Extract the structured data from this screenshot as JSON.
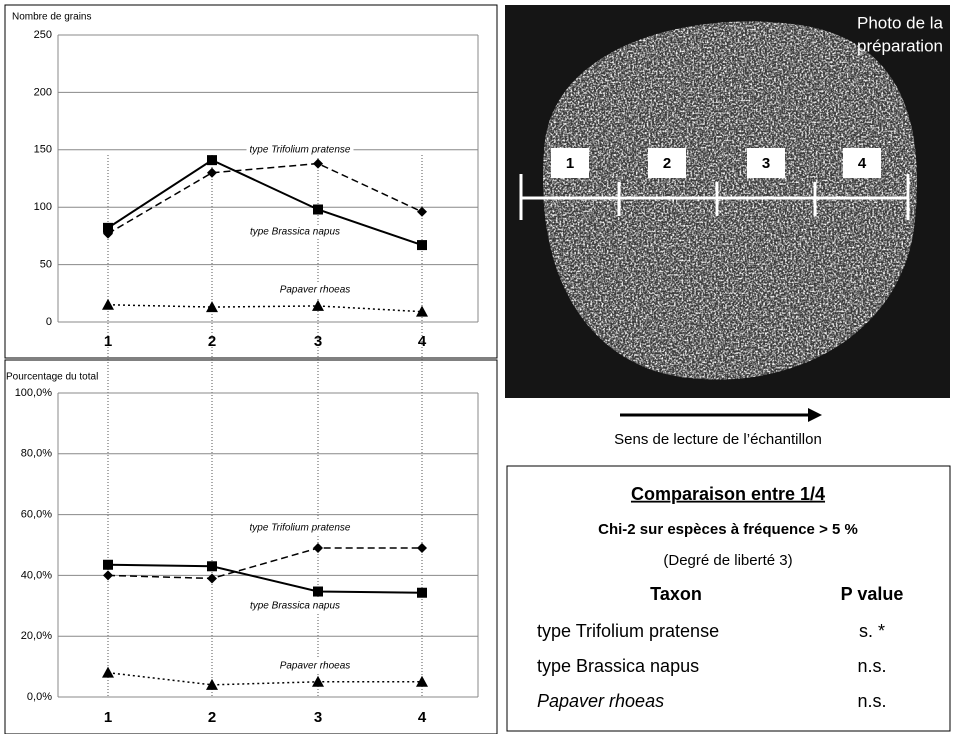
{
  "chart_data": [
    {
      "type": "line",
      "title": "Nombre de grains",
      "categories": [
        "1",
        "2",
        "3",
        "4"
      ],
      "series": [
        {
          "name": "type Trifolium pratense",
          "color": "#000000",
          "dash": "dashed",
          "marker": "diamond",
          "values": [
            77,
            130,
            138,
            96
          ]
        },
        {
          "name": "type Brassica napus",
          "color": "#000000",
          "dash": "solid",
          "marker": "square",
          "values": [
            82,
            141,
            98,
            67
          ]
        },
        {
          "name": "Papaver rhoeas",
          "color": "#000000",
          "dash": "dotted",
          "marker": "triangle",
          "values": [
            15,
            13,
            14,
            9
          ]
        }
      ],
      "ylim": [
        0,
        250
      ],
      "yticks": [
        0,
        50,
        100,
        150,
        200,
        250
      ],
      "grid": true
    },
    {
      "type": "line",
      "title": "Pourcentage du total",
      "categories": [
        "1",
        "2",
        "3",
        "4"
      ],
      "series": [
        {
          "name": "type Trifolium pratense",
          "color": "#000000",
          "dash": "dashed",
          "marker": "diamond",
          "values": [
            40,
            39,
            49,
            49
          ]
        },
        {
          "name": "type Brassica napus",
          "color": "#000000",
          "dash": "solid",
          "marker": "square",
          "values": [
            43.5,
            43,
            34.7,
            34.3
          ]
        },
        {
          "name": "Papaver rhoeas",
          "color": "#000000",
          "dash": "dotted",
          "marker": "triangle",
          "values": [
            8,
            4,
            5,
            5
          ]
        }
      ],
      "ylim": [
        0,
        100
      ],
      "yticks": [
        {
          "value": 0,
          "label": "0,0%"
        },
        {
          "value": 20,
          "label": "20,0%"
        },
        {
          "value": 40,
          "label": "40,0%"
        },
        {
          "value": 60,
          "label": "60,0%"
        },
        {
          "value": 80,
          "label": "80,0%"
        },
        {
          "value": 100,
          "label": "100,0%"
        }
      ],
      "grid": true
    }
  ],
  "photo": {
    "label": [
      "Photo de la",
      "préparation"
    ],
    "segments": [
      "1",
      "2",
      "3",
      "4"
    ],
    "caption": "Sens de lecture de l’échantillon"
  },
  "table": {
    "title": "Comparaison entre 1/4",
    "subtitle": "Chi-2 sur espèces à fréquence > 5 %",
    "note": "(Degré de liberté 3)",
    "header": [
      "Taxon",
      "P value"
    ],
    "rows": [
      [
        "type Trifolium  pratense",
        "s. *"
      ],
      [
        "type Brassica  napus",
        "n.s."
      ],
      [
        "Papaver  rhoeas",
        "n.s."
      ]
    ]
  }
}
